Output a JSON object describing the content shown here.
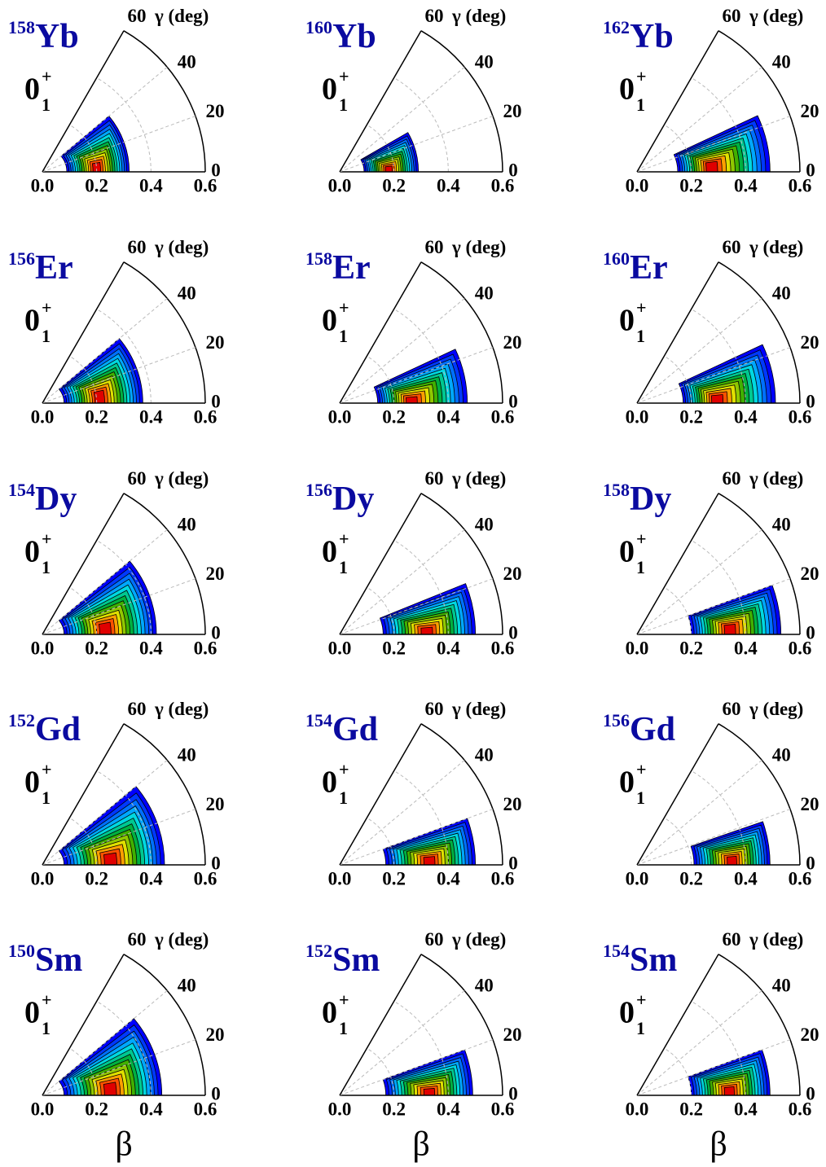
{
  "colormap": [
    "#0000ff",
    "#0038ff",
    "#0070ff",
    "#00a8ff",
    "#00d8e0",
    "#00c890",
    "#00b040",
    "#40b000",
    "#90c800",
    "#e0e000",
    "#ffa000",
    "#ff5000",
    "#e00000"
  ],
  "chart_data": [
    {
      "type": "polar-contour",
      "mass": "158",
      "element": "Yb",
      "state": {
        "base": "0",
        "sup": "+",
        "sub": "1"
      },
      "axis_label": "γ (deg)",
      "xlim": [
        0,
        0.6
      ],
      "ylim": [
        0,
        60
      ],
      "xticks": [
        {
          "value": 0,
          "label": "0.0"
        },
        0.2,
        0.4,
        0.6
      ],
      "yticks": [
        0,
        20,
        40,
        60
      ],
      "beta_range": [
        0.09,
        0.32
      ],
      "gamma_max": 40,
      "peak_beta": 0.2,
      "peak_gamma": 5
    },
    {
      "type": "polar-contour",
      "mass": "160",
      "element": "Yb",
      "state": {
        "base": "0",
        "sup": "+",
        "sub": "1"
      },
      "axis_label": "γ (deg)",
      "xlim": [
        0,
        0.6
      ],
      "ylim": [
        0,
        60
      ],
      "xticks": [
        {
          "value": 0,
          "label": "0.0"
        },
        0.2,
        0.4,
        0.6
      ],
      "yticks": [
        0,
        20,
        40,
        60
      ],
      "beta_range": [
        0.09,
        0.29
      ],
      "gamma_max": 30,
      "peak_beta": 0.18,
      "peak_gamma": 3
    },
    {
      "type": "polar-contour",
      "mass": "162",
      "element": "Yb",
      "state": {
        "base": "0",
        "sup": "+",
        "sub": "1"
      },
      "axis_label": "γ (deg)",
      "xlim": [
        0,
        0.6
      ],
      "ylim": [
        0,
        60
      ],
      "xticks": [
        {
          "value": 0,
          "label": "0.0"
        },
        0.2,
        0.4,
        0.6
      ],
      "yticks": [
        0,
        20,
        40,
        60
      ],
      "beta_range": [
        0.15,
        0.49
      ],
      "gamma_max": 25,
      "peak_beta": 0.27,
      "peak_gamma": 5
    },
    {
      "type": "polar-contour",
      "mass": "156",
      "element": "Er",
      "state": {
        "base": "0",
        "sup": "+",
        "sub": "1"
      },
      "axis_label": "γ (deg)",
      "xlim": [
        0,
        0.6
      ],
      "ylim": [
        0,
        60
      ],
      "xticks": [
        {
          "value": 0,
          "label": "0.0"
        },
        0.2,
        0.4,
        0.6
      ],
      "yticks": [
        0,
        20,
        40,
        60
      ],
      "beta_range": [
        0.08,
        0.37
      ],
      "gamma_max": 40,
      "peak_beta": 0.21,
      "peak_gamma": 8
    },
    {
      "type": "polar-contour",
      "mass": "158",
      "element": "Er",
      "state": {
        "base": "0",
        "sup": "+",
        "sub": "1"
      },
      "axis_label": "γ (deg)",
      "xlim": [
        0,
        0.6
      ],
      "ylim": [
        0,
        60
      ],
      "xticks": [
        {
          "value": 0,
          "label": "0.0"
        },
        0.2,
        0.4,
        0.6
      ],
      "yticks": [
        0,
        20,
        40,
        60
      ],
      "beta_range": [
        0.14,
        0.47
      ],
      "gamma_max": 25,
      "peak_beta": 0.26,
      "peak_gamma": 2
    },
    {
      "type": "polar-contour",
      "mass": "160",
      "element": "Er",
      "state": {
        "base": "0",
        "sup": "+",
        "sub": "1"
      },
      "axis_label": "γ (deg)",
      "xlim": [
        0,
        0.6
      ],
      "ylim": [
        0,
        60
      ],
      "xticks": [
        {
          "value": 0,
          "label": "0.0"
        },
        0.2,
        0.4,
        0.6
      ],
      "yticks": [
        0,
        20,
        40,
        60
      ],
      "beta_range": [
        0.17,
        0.51
      ],
      "gamma_max": 25,
      "peak_beta": 0.29,
      "peak_gamma": 3
    },
    {
      "type": "polar-contour",
      "mass": "154",
      "element": "Dy",
      "state": {
        "base": "0",
        "sup": "+",
        "sub": "1"
      },
      "axis_label": "γ (deg)",
      "xlim": [
        0,
        0.6
      ],
      "ylim": [
        0,
        60
      ],
      "xticks": [
        {
          "value": 0,
          "label": "0.0"
        },
        0.2,
        0.4,
        0.6
      ],
      "yticks": [
        0,
        20,
        40,
        60
      ],
      "beta_range": [
        0.08,
        0.42
      ],
      "gamma_max": 40,
      "peak_beta": 0.23,
      "peak_gamma": 6
    },
    {
      "type": "polar-contour",
      "mass": "156",
      "element": "Dy",
      "state": {
        "base": "0",
        "sup": "+",
        "sub": "1"
      },
      "axis_label": "γ (deg)",
      "xlim": [
        0,
        0.6
      ],
      "ylim": [
        0,
        60
      ],
      "xticks": [
        {
          "value": 0,
          "label": "0.0"
        },
        0.2,
        0.4,
        0.6
      ],
      "yticks": [
        0,
        20,
        40,
        60
      ],
      "beta_range": [
        0.16,
        0.5
      ],
      "gamma_max": 22,
      "peak_beta": 0.32,
      "peak_gamma": 2
    },
    {
      "type": "polar-contour",
      "mass": "158",
      "element": "Dy",
      "state": {
        "base": "0",
        "sup": "+",
        "sub": "1"
      },
      "axis_label": "γ (deg)",
      "xlim": [
        0,
        0.6
      ],
      "ylim": [
        0,
        60
      ],
      "xticks": [
        {
          "value": 0,
          "label": "0.0"
        },
        0.2,
        0.4,
        0.6
      ],
      "yticks": [
        0,
        20,
        40,
        60
      ],
      "beta_range": [
        0.2,
        0.53
      ],
      "gamma_max": 20,
      "peak_beta": 0.34,
      "peak_gamma": 4
    },
    {
      "type": "polar-contour",
      "mass": "152",
      "element": "Gd",
      "state": {
        "base": "0",
        "sup": "+",
        "sub": "1"
      },
      "axis_label": "γ (deg)",
      "xlim": [
        0,
        0.6
      ],
      "ylim": [
        0,
        60
      ],
      "xticks": [
        {
          "value": 0,
          "label": "0.0"
        },
        0.2,
        0.4,
        0.6
      ],
      "yticks": [
        0,
        20,
        40,
        60
      ],
      "beta_range": [
        0.08,
        0.45
      ],
      "gamma_max": 40,
      "peak_beta": 0.25,
      "peak_gamma": 5
    },
    {
      "type": "polar-contour",
      "mass": "154",
      "element": "Gd",
      "state": {
        "base": "0",
        "sup": "+",
        "sub": "1"
      },
      "axis_label": "γ (deg)",
      "xlim": [
        0,
        0.6
      ],
      "ylim": [
        0,
        60
      ],
      "xticks": [
        {
          "value": 0,
          "label": "0.0"
        },
        0.2,
        0.4,
        0.6
      ],
      "yticks": [
        0,
        20,
        40,
        60
      ],
      "beta_range": [
        0.17,
        0.5
      ],
      "gamma_max": 20,
      "peak_beta": 0.33,
      "peak_gamma": 3
    },
    {
      "type": "polar-contour",
      "mass": "156",
      "element": "Gd",
      "state": {
        "base": "0",
        "sup": "+",
        "sub": "1"
      },
      "axis_label": "γ (deg)",
      "xlim": [
        0,
        0.6
      ],
      "ylim": [
        0,
        60
      ],
      "xticks": [
        {
          "value": 0,
          "label": "0.0"
        },
        0.2,
        0.4,
        0.6
      ],
      "yticks": [
        0,
        20,
        40,
        60
      ],
      "beta_range": [
        0.21,
        0.49
      ],
      "gamma_max": 19,
      "peak_beta": 0.35,
      "peak_gamma": 3
    },
    {
      "type": "polar-contour",
      "mass": "150",
      "element": "Sm",
      "state": {
        "base": "0",
        "sup": "+",
        "sub": "1"
      },
      "axis_label": "γ (deg)",
      "xlabel": "β",
      "xlim": [
        0,
        0.6
      ],
      "ylim": [
        0,
        60
      ],
      "xticks": [
        {
          "value": 0,
          "label": "0.0"
        },
        0.2,
        0.4,
        0.6
      ],
      "yticks": [
        0,
        20,
        40,
        60
      ],
      "beta_range": [
        0.08,
        0.44
      ],
      "gamma_max": 40,
      "peak_beta": 0.25,
      "peak_gamma": 6
    },
    {
      "type": "polar-contour",
      "mass": "152",
      "element": "Sm",
      "state": {
        "base": "0",
        "sup": "+",
        "sub": "1"
      },
      "axis_label": "γ (deg)",
      "xlabel": "β",
      "xlim": [
        0,
        0.6
      ],
      "ylim": [
        0,
        60
      ],
      "xticks": [
        {
          "value": 0,
          "label": "0.0"
        },
        0.2,
        0.4,
        0.6
      ],
      "yticks": [
        0,
        20,
        40,
        60
      ],
      "beta_range": [
        0.17,
        0.49
      ],
      "gamma_max": 20,
      "peak_beta": 0.33,
      "peak_gamma": 2
    },
    {
      "type": "polar-contour",
      "mass": "154",
      "element": "Sm",
      "state": {
        "base": "0",
        "sup": "+",
        "sub": "1"
      },
      "axis_label": "γ (deg)",
      "xlabel": "β",
      "xlim": [
        0,
        0.6
      ],
      "ylim": [
        0,
        60
      ],
      "xticks": [
        {
          "value": 0,
          "label": "0.0"
        },
        0.2,
        0.4,
        0.6
      ],
      "yticks": [
        0,
        20,
        40,
        60
      ],
      "beta_range": [
        0.2,
        0.49
      ],
      "gamma_max": 20,
      "peak_beta": 0.34,
      "peak_gamma": 3
    }
  ]
}
